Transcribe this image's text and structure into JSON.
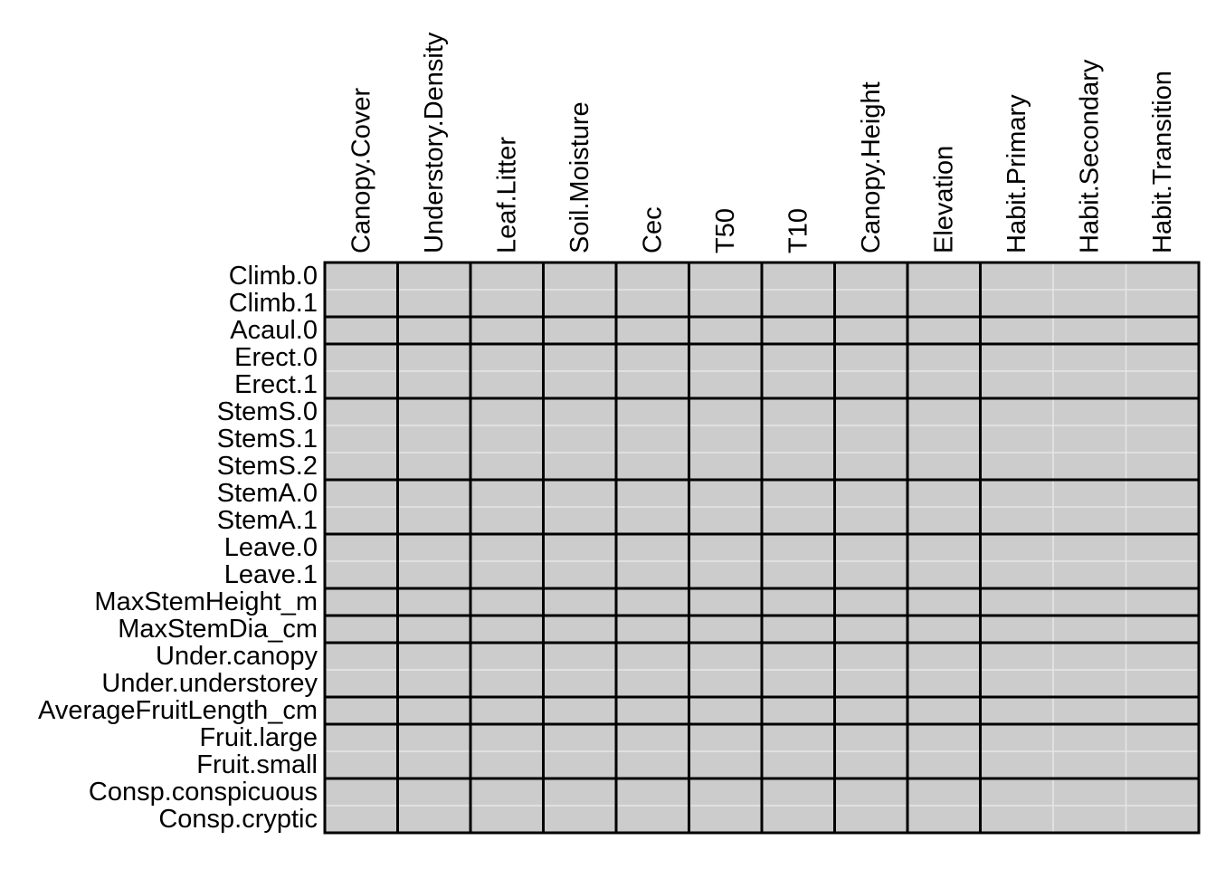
{
  "chart_data": {
    "type": "heatmap",
    "title": "",
    "xlabel": "",
    "ylabel": "",
    "columns": [
      "Canopy.Cover",
      "Understory.Density",
      "Leaf.Litter",
      "Soil.Moisture",
      "Cec",
      "T50",
      "T10",
      "Canopy.Height",
      "Elevation",
      "Habit.Primary",
      "Habit.Secondary",
      "Habit.Transition"
    ],
    "rows": [
      "Climb.0",
      "Climb.1",
      "Acaul.0",
      "Erect.0",
      "Erect.1",
      "StemS.0",
      "StemS.1",
      "StemS.2",
      "StemA.0",
      "StemA.1",
      "Leave.0",
      "Leave.1",
      "MaxStemHeight_m",
      "MaxStemDia_cm",
      "Under.canopy",
      "Under.understorey",
      "AverageFruitLength_cm",
      "Fruit.large",
      "Fruit.small",
      "Consp.conspicuous",
      "Consp.cryptic"
    ],
    "row_groups": [
      [
        "Climb.0",
        "Climb.1"
      ],
      [
        "Acaul.0"
      ],
      [
        "Erect.0",
        "Erect.1"
      ],
      [
        "StemS.0",
        "StemS.1",
        "StemS.2"
      ],
      [
        "StemA.0",
        "StemA.1"
      ],
      [
        "Leave.0",
        "Leave.1"
      ],
      [
        "MaxStemHeight_m"
      ],
      [
        "MaxStemDia_cm"
      ],
      [
        "Under.canopy",
        "Under.understorey"
      ],
      [
        "AverageFruitLength_cm"
      ],
      [
        "Fruit.large",
        "Fruit.small"
      ],
      [
        "Consp.conspicuous",
        "Consp.cryptic"
      ]
    ],
    "column_groups": [
      [
        "Canopy.Cover"
      ],
      [
        "Understory.Density"
      ],
      [
        "Leaf.Litter"
      ],
      [
        "Soil.Moisture"
      ],
      [
        "Cec"
      ],
      [
        "T50"
      ],
      [
        "T10"
      ],
      [
        "Canopy.Height"
      ],
      [
        "Elevation"
      ],
      [
        "Habit.Primary",
        "Habit.Secondary",
        "Habit.Transition"
      ]
    ],
    "values": "all cells empty (no data shown)",
    "cell_fill": "#cccccc",
    "minor_grid_color": "#e6e6e6",
    "group_border_color": "#000000",
    "legend": "none"
  }
}
